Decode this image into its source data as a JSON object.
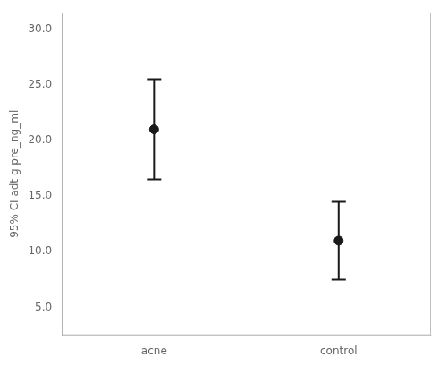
{
  "chart_data": {
    "type": "errorbar",
    "categories": [
      "acne",
      "control"
    ],
    "values": [
      21.0,
      11.0
    ],
    "lower_bounds": [
      16.5,
      7.5
    ],
    "upper_bounds": [
      25.5,
      14.5
    ],
    "ylabel": "95% CI adt g pre_ng_ml",
    "ylim": [
      2.5,
      31.5
    ],
    "yticks": [
      {
        "value": 5.0,
        "label": "5.0"
      },
      {
        "value": 10.0,
        "label": "10.0"
      },
      {
        "value": 15.0,
        "label": "15.0"
      },
      {
        "value": 20.0,
        "label": "20.0"
      },
      {
        "value": 25.0,
        "label": "25.0"
      },
      {
        "value": 30.0,
        "label": "30.0"
      }
    ],
    "color": "#1a1a1a",
    "grid": false
  }
}
